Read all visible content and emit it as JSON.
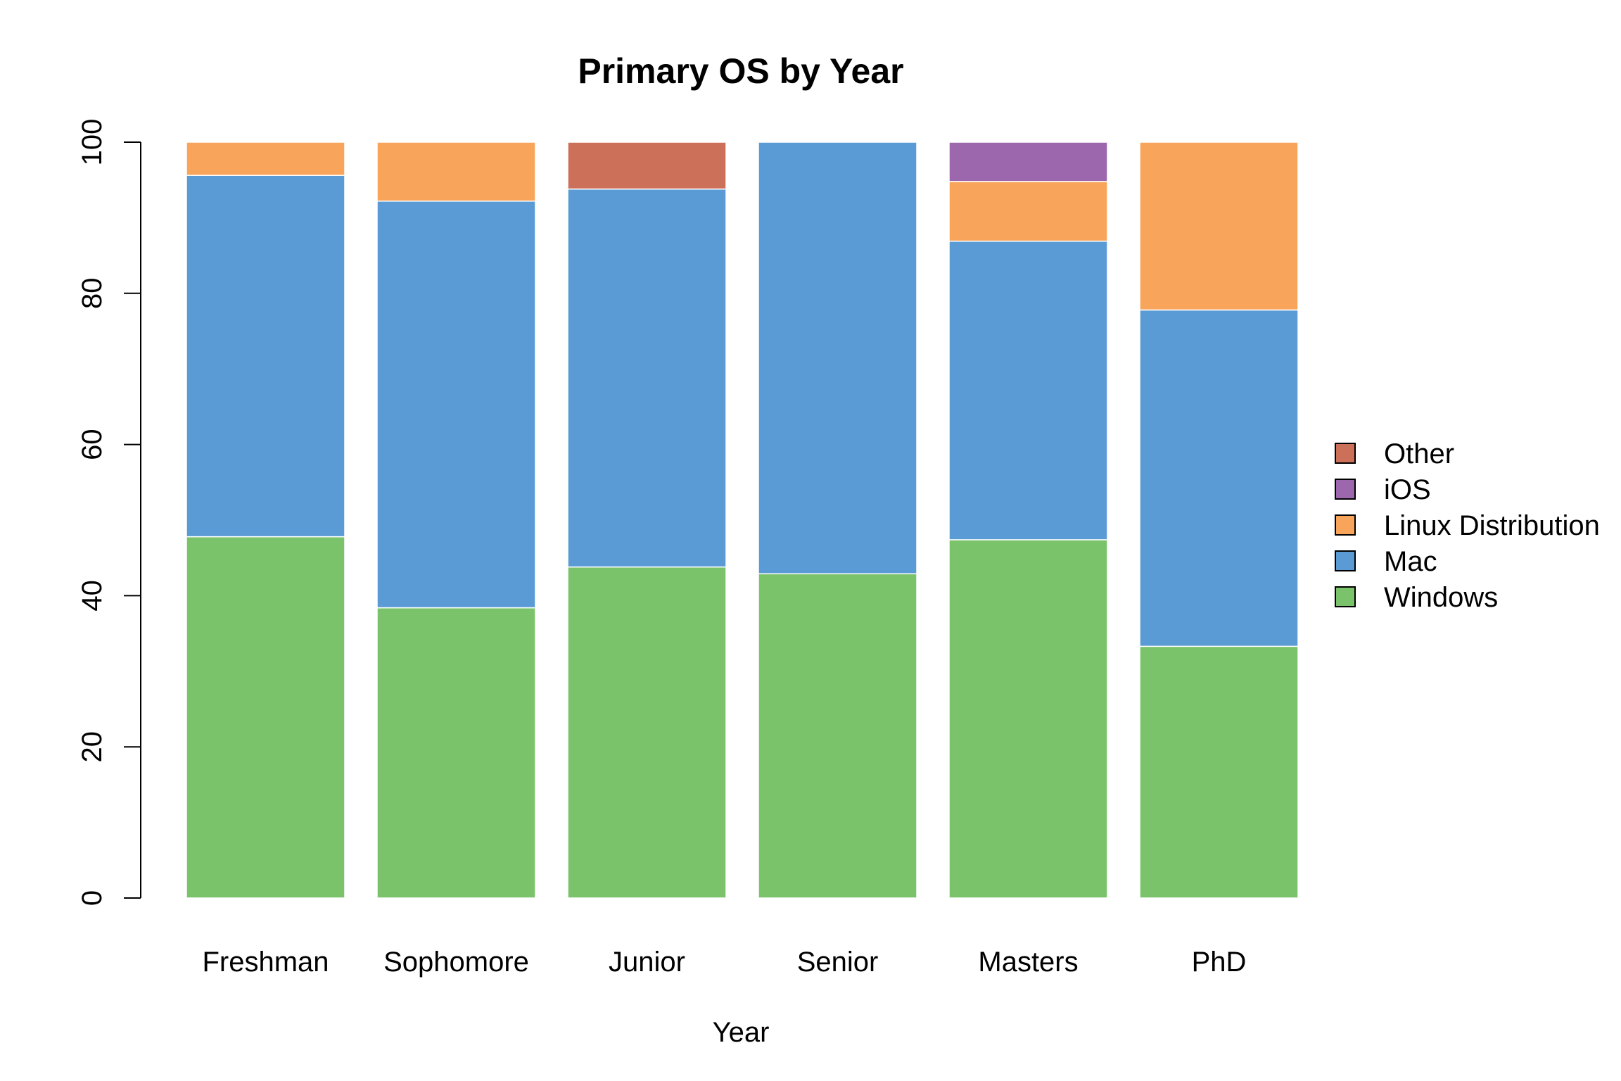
{
  "chart_data": {
    "type": "bar",
    "stacked": true,
    "title": "Primary OS by Year",
    "xlabel": "Year",
    "ylabel": "",
    "ylim": [
      0,
      100
    ],
    "yticks": [
      0,
      20,
      40,
      60,
      80,
      100
    ],
    "categories": [
      "Freshman",
      "Sophomore",
      "Junior",
      "Senior",
      "Masters",
      "PhD"
    ],
    "series": [
      {
        "name": "Windows",
        "color": "#7BC36B",
        "values": [
          47.8,
          38.4,
          43.8,
          42.9,
          47.4,
          33.3
        ]
      },
      {
        "name": "Mac",
        "color": "#5B9BD5",
        "values": [
          47.8,
          53.8,
          50.0,
          57.1,
          39.5,
          44.5
        ]
      },
      {
        "name": "Linux Distribution",
        "color": "#F8A55B",
        "values": [
          4.4,
          7.8,
          0,
          0,
          7.9,
          22.2
        ]
      },
      {
        "name": "iOS",
        "color": "#9C67AD",
        "values": [
          0,
          0,
          0,
          0,
          5.2,
          0
        ]
      },
      {
        "name": "Other",
        "color": "#CC705A",
        "values": [
          0,
          0,
          6.2,
          0,
          0,
          0
        ]
      }
    ],
    "legend": {
      "position": "right",
      "order": [
        "Other",
        "iOS",
        "Linux Distribution",
        "Mac",
        "Windows"
      ]
    },
    "grid": false
  }
}
